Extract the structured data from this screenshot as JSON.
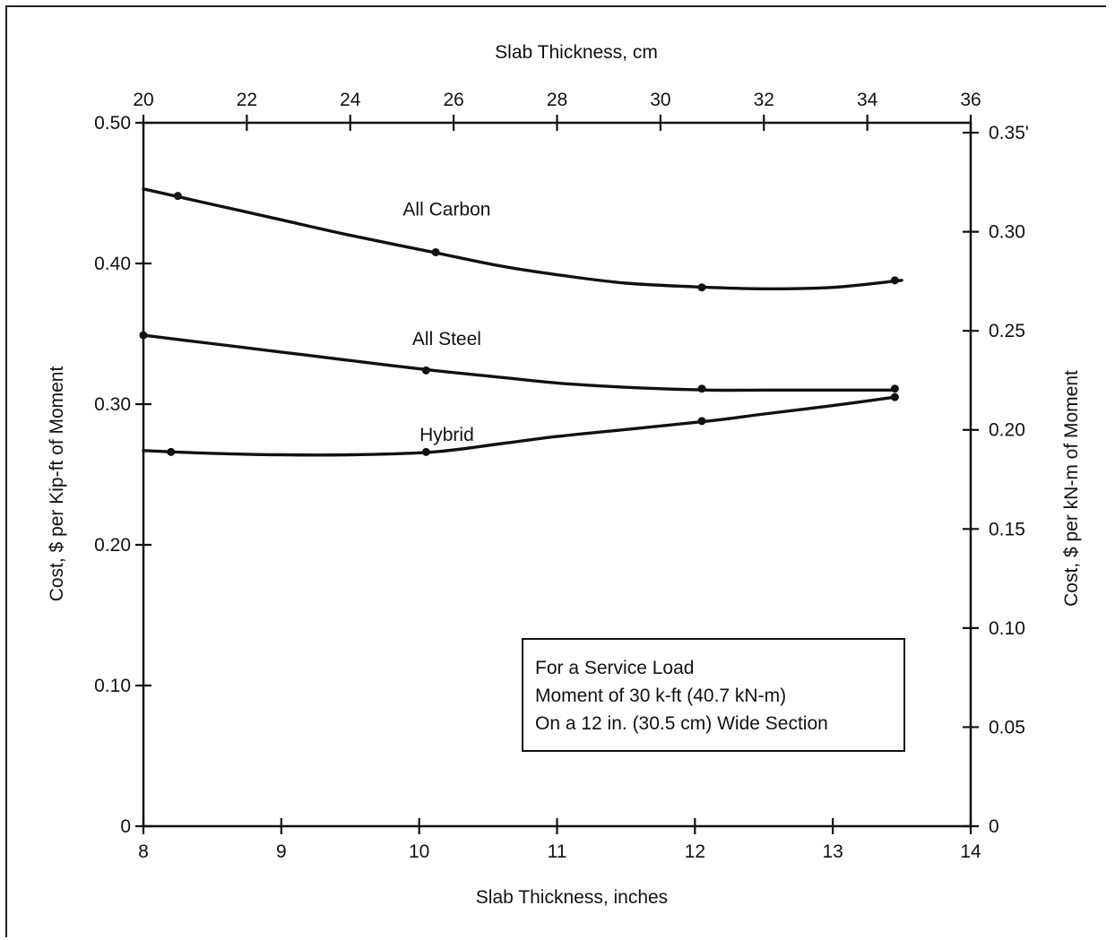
{
  "chart_data": {
    "type": "line",
    "xlabel": "Slab Thickness, inches",
    "x2label": "Slab Thickness, cm",
    "ylabel": "Cost, $ per Kip-ft of Moment",
    "y2label": "Cost, $ per kN-m of Moment",
    "xlim": [
      8,
      14
    ],
    "x2lim": [
      20,
      36
    ],
    "ylim": [
      0,
      0.5
    ],
    "y2lim": [
      0,
      0.355
    ],
    "x_ticks": [
      8,
      9,
      10,
      11,
      12,
      13,
      14
    ],
    "x2_ticks": [
      20,
      22,
      24,
      26,
      28,
      30,
      32,
      34,
      36
    ],
    "y_ticks": [
      {
        "v": 0,
        "label": "0"
      },
      {
        "v": 0.1,
        "label": "0.10"
      },
      {
        "v": 0.2,
        "label": "0.20"
      },
      {
        "v": 0.3,
        "label": "0.30"
      },
      {
        "v": 0.4,
        "label": "0.40"
      },
      {
        "v": 0.5,
        "label": "0.50"
      }
    ],
    "y2_ticks": [
      {
        "v": 0,
        "label": "0"
      },
      {
        "v": 0.05,
        "label": "0.05"
      },
      {
        "v": 0.1,
        "label": "0.10"
      },
      {
        "v": 0.15,
        "label": "0.15"
      },
      {
        "v": 0.2,
        "label": "0.20"
      },
      {
        "v": 0.25,
        "label": "0.25"
      },
      {
        "v": 0.3,
        "label": "0.30"
      },
      {
        "v": 0.35,
        "label": "0.35'"
      }
    ],
    "series": [
      {
        "name": "All Carbon",
        "label_at": [
          10.2,
          0.434
        ],
        "curve": [
          [
            8.0,
            0.453
          ],
          [
            8.5,
            0.442
          ],
          [
            9.0,
            0.431
          ],
          [
            9.5,
            0.42
          ],
          [
            10.1,
            0.408
          ],
          [
            10.6,
            0.398
          ],
          [
            11.0,
            0.392
          ],
          [
            11.5,
            0.386
          ],
          [
            12.1,
            0.383
          ],
          [
            12.5,
            0.382
          ],
          [
            13.0,
            0.383
          ],
          [
            13.5,
            0.388
          ]
        ],
        "points": [
          [
            8.25,
            0.448
          ],
          [
            10.12,
            0.408
          ],
          [
            12.05,
            0.383
          ],
          [
            13.45,
            0.388
          ]
        ]
      },
      {
        "name": "All Steel",
        "label_at": [
          10.2,
          0.342
        ],
        "curve": [
          [
            8.0,
            0.349
          ],
          [
            8.5,
            0.343
          ],
          [
            9.0,
            0.337
          ],
          [
            9.5,
            0.331
          ],
          [
            10.1,
            0.324
          ],
          [
            10.6,
            0.319
          ],
          [
            11.0,
            0.315
          ],
          [
            11.5,
            0.312
          ],
          [
            12.1,
            0.31
          ],
          [
            12.5,
            0.31
          ],
          [
            13.0,
            0.31
          ],
          [
            13.45,
            0.31
          ]
        ],
        "points": [
          [
            8.0,
            0.349
          ],
          [
            10.05,
            0.324
          ],
          [
            12.05,
            0.311
          ],
          [
            13.45,
            0.311
          ]
        ]
      },
      {
        "name": "Hybrid",
        "label_at": [
          10.2,
          0.274
        ],
        "curve": [
          [
            8.0,
            0.267
          ],
          [
            8.5,
            0.265
          ],
          [
            9.0,
            0.264
          ],
          [
            9.5,
            0.264
          ],
          [
            10.1,
            0.266
          ],
          [
            10.6,
            0.272
          ],
          [
            11.0,
            0.277
          ],
          [
            11.5,
            0.282
          ],
          [
            12.1,
            0.288
          ],
          [
            12.5,
            0.293
          ],
          [
            13.0,
            0.299
          ],
          [
            13.45,
            0.305
          ]
        ],
        "points": [
          [
            8.2,
            0.266
          ],
          [
            10.05,
            0.266
          ],
          [
            12.05,
            0.288
          ],
          [
            13.45,
            0.305
          ]
        ]
      }
    ],
    "annotation": {
      "lines": [
        "For a Service Load",
        "Moment of 30 k-ft (40.7 kN-m)",
        "On a 12 in. (30.5 cm) Wide Section"
      ]
    }
  }
}
